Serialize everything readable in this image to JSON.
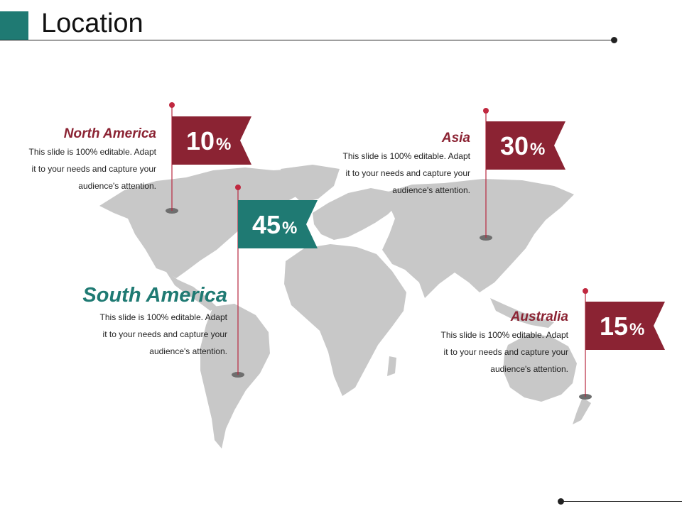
{
  "page": {
    "title": "Location"
  },
  "colors": {
    "accent_red": "#8b2333",
    "accent_teal": "#1f7a73",
    "map_gray": "#c8c8c8"
  },
  "regions": [
    {
      "name": "North America",
      "desc_lines": [
        "This slide is 100% editable. Adapt",
        "it to your needs and capture your",
        "audience's attention."
      ],
      "value": "10",
      "unit": "%"
    },
    {
      "name": "Asia",
      "desc_lines": [
        "This slide is 100% editable. Adapt",
        "it to your needs and capture your",
        "audience's attention."
      ],
      "value": "30",
      "unit": "%"
    },
    {
      "name": "South America",
      "desc_lines": [
        "This slide is 100% editable. Adapt",
        "it to your needs and capture your",
        "audience's attention."
      ],
      "value": "45",
      "unit": "%"
    },
    {
      "name": "Australia",
      "desc_lines": [
        "This slide is 100% editable. Adapt",
        "it to your needs and capture your",
        "audience's attention."
      ],
      "value": "15",
      "unit": "%"
    }
  ]
}
